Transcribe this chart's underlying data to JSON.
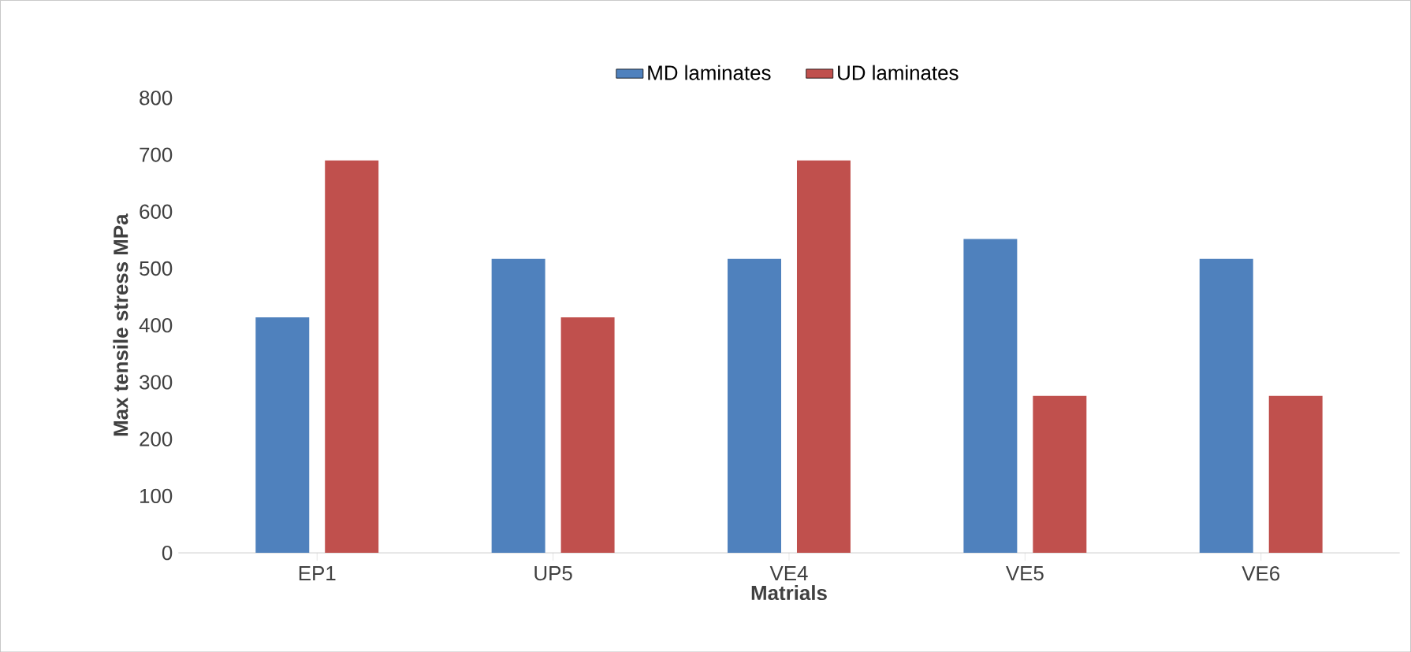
{
  "chart_data": {
    "type": "bar",
    "xlabel": "Matrials",
    "ylabel": "Max tensile stress MPa",
    "categories": [
      "EP1",
      "UP5",
      "VE4",
      "VE5",
      "VE6"
    ],
    "series": [
      {
        "name": "MD laminates",
        "color": "#4f81bd",
        "values": [
          414,
          517,
          517,
          552,
          517
        ]
      },
      {
        "name": "UD laminates",
        "color": "#c0504d",
        "values": [
          690,
          414,
          690,
          276,
          276
        ]
      }
    ],
    "ylim": [
      0,
      800
    ],
    "yticks": [
      0,
      100,
      200,
      300,
      400,
      500,
      600,
      700,
      800
    ],
    "grid": false,
    "legend": "top"
  }
}
